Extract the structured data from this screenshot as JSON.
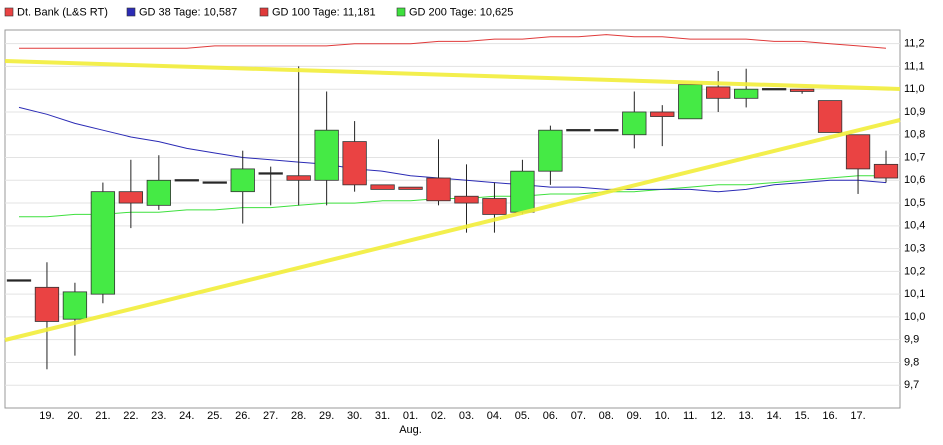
{
  "chart_data": {
    "type": "candlestick",
    "categories": [
      null,
      "19.",
      "20.",
      "21.",
      "22.",
      "23.",
      "24.",
      "25.",
      "26.",
      "27.",
      "28.",
      "29.",
      "30.",
      "31.",
      "01.",
      "02.",
      "03.",
      "04.",
      "05.",
      "06.",
      "07.",
      "08.",
      "09.",
      "10.",
      "11.",
      "12.",
      "13.",
      "14.",
      "15.",
      "16.",
      "17.",
      null
    ],
    "x_sublabels": [
      null,
      null,
      null,
      null,
      null,
      null,
      null,
      null,
      null,
      null,
      null,
      null,
      null,
      null,
      "Aug.",
      null,
      null,
      null,
      null,
      null,
      null,
      null,
      null,
      null,
      null,
      null,
      null,
      null,
      null,
      null,
      null,
      null
    ],
    "series": [
      {
        "name": "Dt. Bank (L&S RT)",
        "color": "#ea4343",
        "up_color": "#45ea45",
        "open": [
          10.16,
          10.13,
          9.99,
          10.1,
          10.55,
          10.49,
          10.6,
          10.59,
          10.55,
          10.63,
          10.62,
          10.6,
          10.77,
          10.58,
          10.57,
          10.61,
          10.53,
          10.52,
          10.46,
          10.64,
          10.82,
          10.82,
          10.8,
          10.9,
          10.87,
          11.01,
          10.96,
          11.0,
          11.0,
          10.95,
          10.8,
          10.67
        ],
        "high": [
          10.16,
          10.24,
          10.15,
          10.59,
          10.69,
          10.71,
          10.6,
          10.59,
          10.73,
          10.66,
          11.1,
          10.99,
          10.86,
          10.58,
          10.57,
          10.78,
          10.67,
          10.59,
          10.69,
          10.84,
          10.82,
          10.82,
          10.99,
          10.93,
          11.02,
          11.08,
          11.09,
          11.0,
          11.0,
          10.95,
          10.8,
          10.73
        ],
        "low": [
          10.16,
          9.77,
          9.83,
          10.06,
          10.39,
          10.47,
          10.6,
          10.59,
          10.41,
          10.49,
          10.49,
          10.49,
          10.55,
          10.56,
          10.56,
          10.49,
          10.37,
          10.37,
          10.45,
          10.58,
          10.82,
          10.82,
          10.74,
          10.75,
          10.87,
          10.9,
          10.92,
          11.0,
          10.98,
          10.81,
          10.54,
          10.59
        ],
        "close": [
          10.16,
          9.98,
          10.11,
          10.55,
          10.5,
          10.6,
          10.6,
          10.59,
          10.65,
          10.63,
          10.6,
          10.82,
          10.58,
          10.56,
          10.56,
          10.51,
          10.5,
          10.45,
          10.64,
          10.82,
          10.82,
          10.82,
          10.9,
          10.88,
          11.02,
          10.96,
          11.0,
          11.0,
          10.99,
          10.81,
          10.65,
          10.61
        ]
      },
      {
        "name": "GD 38 Tage: 10,587",
        "color": "#2b2bb5",
        "values": [
          10.92,
          10.89,
          10.85,
          10.82,
          10.79,
          10.77,
          10.74,
          10.72,
          10.7,
          10.69,
          10.68,
          10.67,
          10.65,
          10.64,
          10.62,
          10.61,
          10.6,
          10.59,
          10.58,
          10.57,
          10.57,
          10.56,
          10.56,
          10.56,
          10.56,
          10.55,
          10.56,
          10.58,
          10.59,
          10.6,
          10.6,
          10.59
        ]
      },
      {
        "name": "GD 100 Tage: 11,181",
        "color": "#e03a3a",
        "values": [
          11.18,
          11.18,
          11.18,
          11.18,
          11.18,
          11.18,
          11.18,
          11.19,
          11.19,
          11.19,
          11.19,
          11.19,
          11.2,
          11.2,
          11.2,
          11.21,
          11.21,
          11.22,
          11.22,
          11.23,
          11.23,
          11.24,
          11.23,
          11.23,
          11.22,
          11.22,
          11.22,
          11.21,
          11.21,
          11.2,
          11.19,
          11.18
        ]
      },
      {
        "name": "GD 200 Tage: 10,625",
        "color": "#3ee03e",
        "values": [
          10.44,
          10.44,
          10.45,
          10.45,
          10.46,
          10.46,
          10.47,
          10.47,
          10.48,
          10.48,
          10.49,
          10.5,
          10.5,
          10.51,
          10.51,
          10.52,
          10.52,
          10.53,
          10.53,
          10.54,
          10.54,
          10.55,
          10.55,
          10.56,
          10.57,
          10.58,
          10.58,
          10.59,
          10.6,
          10.61,
          10.62,
          10.62
        ]
      }
    ],
    "ylim": [
      9.6,
      11.26
    ],
    "yticks": [
      {
        "value": 9.7,
        "label": "9,7"
      },
      {
        "value": 9.8,
        "label": "9,8"
      },
      {
        "value": 9.9,
        "label": "9,9"
      },
      {
        "value": 10.0,
        "label": "10,0"
      },
      {
        "value": 10.1,
        "label": "10,1"
      },
      {
        "value": 10.2,
        "label": "10,2"
      },
      {
        "value": 10.3,
        "label": "10,3"
      },
      {
        "value": 10.4,
        "label": "10,4"
      },
      {
        "value": 10.5,
        "label": "10,5"
      },
      {
        "value": 10.6,
        "label": "10,6"
      },
      {
        "value": 10.7,
        "label": "10,7"
      },
      {
        "value": 10.8,
        "label": "10,8"
      },
      {
        "value": 10.9,
        "label": "10,9"
      },
      {
        "value": 11.0,
        "label": "11,0"
      },
      {
        "value": 11.1,
        "label": "11,1"
      },
      {
        "value": 11.2,
        "label": "11,2"
      }
    ],
    "grid": true
  }
}
